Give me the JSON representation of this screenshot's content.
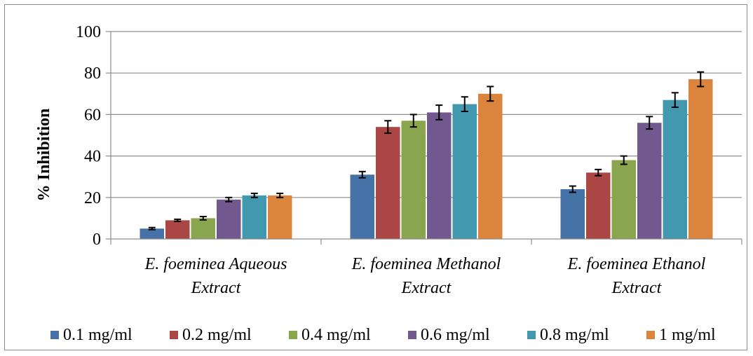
{
  "chart_data": {
    "type": "bar",
    "title": "",
    "xlabel": "",
    "ylabel": "% Inhibition",
    "ylim": [
      0,
      100
    ],
    "yticks": [
      0,
      20,
      40,
      60,
      80,
      100
    ],
    "grid": true,
    "legend_position": "bottom",
    "categories": [
      [
        "E. foeminea Aqueous",
        "Extract"
      ],
      [
        "E. foeminea Methanol",
        "Extract"
      ],
      [
        "E. foeminea Ethanol",
        "Extract"
      ]
    ],
    "series": [
      {
        "name": "0.1 mg/ml",
        "color": "#4572a7",
        "values": [
          5,
          31,
          24
        ],
        "errors": [
          0.5,
          1.5,
          1.5
        ]
      },
      {
        "name": "0.2 mg/ml",
        "color": "#aa4643",
        "values": [
          9,
          54,
          32
        ],
        "errors": [
          0.5,
          3,
          1.5
        ]
      },
      {
        "name": "0.4 mg/ml",
        "color": "#89a54e",
        "values": [
          10,
          57,
          38
        ],
        "errors": [
          0.8,
          3,
          2
        ]
      },
      {
        "name": "0.6 mg/ml",
        "color": "#71588f",
        "values": [
          19,
          61,
          56
        ],
        "errors": [
          1,
          3.5,
          3
        ]
      },
      {
        "name": "0.8 mg/ml",
        "color": "#4198af",
        "values": [
          21,
          65,
          67
        ],
        "errors": [
          1,
          3.5,
          3.5
        ]
      },
      {
        "name": "1 mg/ml",
        "color": "#db843d",
        "values": [
          21,
          70,
          77
        ],
        "errors": [
          1,
          3.5,
          3.5
        ]
      }
    ]
  }
}
